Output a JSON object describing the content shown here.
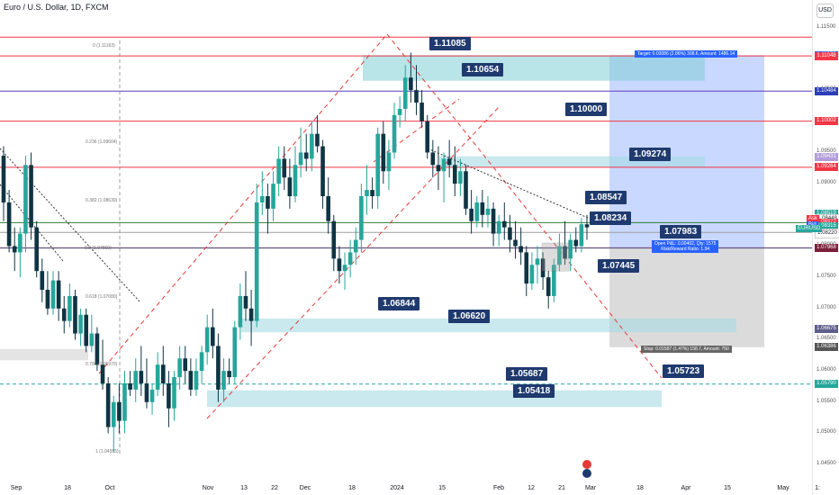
{
  "title": "Euro / U.S. Dollar, 1D, FXCM",
  "currency_button": "USD",
  "chart_data": {
    "type": "candlestick",
    "symbol": "EURUSD",
    "x_ticks": [
      "Sep",
      "18",
      "Oct",
      "Nov",
      "13",
      "22",
      "Dec",
      "18",
      "2024",
      "15",
      "Feb",
      "12",
      "21",
      "Mar",
      "18",
      "Apr",
      "15",
      "May",
      "1:"
    ],
    "y_ticks": [
      "1.11500",
      "1.11000",
      "1.10500",
      "1.10000",
      "1.09500",
      "1.09000",
      "1.08500",
      "1.08000",
      "1.07500",
      "1.07000",
      "1.06500",
      "1.06000",
      "1.05500",
      "1.05000",
      "1.04500"
    ],
    "ylim": [
      1.043,
      1.118
    ],
    "price_tags": [
      {
        "label": "1.11059",
        "color": "#2962ff"
      },
      {
        "label": "1.11048",
        "color": "#f23645"
      },
      {
        "label": "1.10484",
        "color": "#2c3eb8"
      },
      {
        "label": "1.10002",
        "color": "#f23645"
      },
      {
        "label": "1.09431",
        "color": "#b39ddb"
      },
      {
        "label": "1.09264",
        "color": "#f23645"
      },
      {
        "label": "1.08519",
        "color": "#26a69a"
      },
      {
        "label": "1.08448",
        "color": "#ffffff"
      },
      {
        "label": "1.08377",
        "color": "#f23645"
      },
      {
        "label": "1.08275",
        "color": "#2962ff"
      },
      {
        "label": "1.08315",
        "color": "#26a69a"
      },
      {
        "label": "1.08220",
        "color": "#ffffff"
      },
      {
        "label": "1.07973",
        "color": "#555555"
      },
      {
        "label": "1.07968",
        "color": "#7b1f3a"
      },
      {
        "label": "1.06675",
        "color": "#5e5e8c"
      },
      {
        "label": "1.06386",
        "color": "#555555"
      },
      {
        "label": "1.05790",
        "color": "#26a69a"
      }
    ],
    "mini_labels": [
      "Ask",
      "Bid",
      "EURUSD"
    ],
    "callouts": [
      "1.11085",
      "1.10654",
      "1.10000",
      "1.09274",
      "1.08547",
      "1.08234",
      "1.07983",
      "1.07445",
      "1.06844",
      "1.06620",
      "1.05687",
      "1.05418",
      "1.05723"
    ],
    "fib_labels": [
      "0 (1.11163)",
      "0.236 (1.09604)",
      "0.382 (1.08639)",
      "0.5 (1.07859)",
      "0.618 (1.07080)",
      "0.786 (1.05970)",
      "1 (1.04555)"
    ],
    "position": {
      "target": "Target: 0.03086 (2.86%) 308.6, Amount: 1486.14",
      "open": "Open P&L: 0.00402, Qty: 1575",
      "rr": "Risk/Reward Ratio: 1.94",
      "stop": "Stop: 0.01587 (1.47%) 158.7, Amount: 750"
    },
    "candles": [
      [
        1.0945,
        1.096,
        1.084,
        1.087
      ],
      [
        1.087,
        1.089,
        1.079,
        1.08
      ],
      [
        1.08,
        1.083,
        1.076,
        1.079
      ],
      [
        1.079,
        1.083,
        1.075,
        1.082
      ],
      [
        1.082,
        1.0945,
        1.079,
        1.093
      ],
      [
        1.093,
        1.095,
        1.081,
        1.083
      ],
      [
        1.083,
        1.084,
        1.075,
        1.076
      ],
      [
        1.076,
        1.078,
        1.071,
        1.073
      ],
      [
        1.073,
        1.076,
        1.069,
        1.07
      ],
      [
        1.07,
        1.076,
        1.069,
        1.0745
      ],
      [
        1.0745,
        1.076,
        1.068,
        1.07
      ],
      [
        1.07,
        1.072,
        1.066,
        1.068
      ],
      [
        1.068,
        1.074,
        1.067,
        1.072
      ],
      [
        1.072,
        1.073,
        1.065,
        1.066
      ],
      [
        1.066,
        1.07,
        1.064,
        1.069
      ],
      [
        1.069,
        1.07,
        1.063,
        1.064
      ],
      [
        1.064,
        1.069,
        1.063,
        1.066
      ],
      [
        1.066,
        1.067,
        1.06,
        1.061
      ],
      [
        1.061,
        1.065,
        1.057,
        1.058
      ],
      [
        1.058,
        1.059,
        1.05,
        1.051
      ],
      [
        1.051,
        1.056,
        1.047,
        1.055
      ],
      [
        1.055,
        1.058,
        1.05,
        1.052
      ],
      [
        1.052,
        1.06,
        1.05,
        1.058
      ],
      [
        1.058,
        1.06,
        1.056,
        1.057
      ],
      [
        1.057,
        1.062,
        1.055,
        1.06
      ],
      [
        1.06,
        1.064,
        1.056,
        1.058
      ],
      [
        1.058,
        1.062,
        1.054,
        1.055
      ],
      [
        1.055,
        1.058,
        1.053,
        1.057
      ],
      [
        1.057,
        1.063,
        1.056,
        1.061
      ],
      [
        1.061,
        1.064,
        1.056,
        1.058
      ],
      [
        1.058,
        1.06,
        1.051,
        1.054
      ],
      [
        1.054,
        1.06,
        1.052,
        1.059
      ],
      [
        1.059,
        1.064,
        1.057,
        1.062
      ],
      [
        1.062,
        1.064,
        1.058,
        1.06
      ],
      [
        1.06,
        1.062,
        1.056,
        1.057
      ],
      [
        1.057,
        1.062,
        1.056,
        1.06
      ],
      [
        1.06,
        1.064,
        1.058,
        1.063
      ],
      [
        1.063,
        1.069,
        1.061,
        1.067
      ],
      [
        1.067,
        1.07,
        1.062,
        1.064
      ],
      [
        1.064,
        1.066,
        1.055,
        1.057
      ],
      [
        1.057,
        1.062,
        1.055,
        1.06
      ],
      [
        1.06,
        1.062,
        1.058,
        1.059
      ],
      [
        1.059,
        1.068,
        1.058,
        1.067
      ],
      [
        1.067,
        1.074,
        1.065,
        1.072
      ],
      [
        1.072,
        1.076,
        1.068,
        1.07
      ],
      [
        1.07,
        1.073,
        1.064,
        1.068
      ],
      [
        1.068,
        1.09,
        1.067,
        1.087
      ],
      [
        1.087,
        1.092,
        1.085,
        1.088
      ],
      [
        1.088,
        1.09,
        1.082,
        1.086
      ],
      [
        1.086,
        1.092,
        1.084,
        1.09
      ],
      [
        1.09,
        1.096,
        1.088,
        1.094
      ],
      [
        1.094,
        1.096,
        1.089,
        1.091
      ],
      [
        1.091,
        1.094,
        1.086,
        1.088
      ],
      [
        1.088,
        1.096,
        1.087,
        1.093
      ],
      [
        1.093,
        1.099,
        1.091,
        1.095
      ],
      [
        1.095,
        1.098,
        1.092,
        1.094
      ],
      [
        1.094,
        1.1,
        1.092,
        1.098
      ],
      [
        1.098,
        1.101,
        1.095,
        1.096
      ],
      [
        1.096,
        1.097,
        1.086,
        1.088
      ],
      [
        1.088,
        1.091,
        1.082,
        1.084
      ],
      [
        1.084,
        1.085,
        1.076,
        1.078
      ],
      [
        1.078,
        1.08,
        1.074,
        1.076
      ],
      [
        1.076,
        1.079,
        1.073,
        1.077
      ],
      [
        1.077,
        1.081,
        1.075,
        1.079
      ],
      [
        1.079,
        1.083,
        1.077,
        1.081
      ],
      [
        1.081,
        1.09,
        1.079,
        1.088
      ],
      [
        1.088,
        1.093,
        1.085,
        1.089
      ],
      [
        1.089,
        1.091,
        1.086,
        1.088
      ],
      [
        1.088,
        1.099,
        1.086,
        1.098
      ],
      [
        1.098,
        1.1,
        1.09,
        1.092
      ],
      [
        1.092,
        1.097,
        1.089,
        1.095
      ],
      [
        1.095,
        1.103,
        1.094,
        1.101
      ],
      [
        1.101,
        1.104,
        1.099,
        1.102
      ],
      [
        1.102,
        1.109,
        1.1,
        1.107
      ],
      [
        1.107,
        1.111,
        1.103,
        1.105
      ],
      [
        1.105,
        1.109,
        1.101,
        1.103
      ],
      [
        1.103,
        1.105,
        1.099,
        1.1
      ],
      [
        1.1,
        1.101,
        1.094,
        1.095
      ],
      [
        1.095,
        1.097,
        1.091,
        1.093
      ],
      [
        1.093,
        1.096,
        1.089,
        1.092
      ],
      [
        1.092,
        1.095,
        1.087,
        1.094
      ],
      [
        1.094,
        1.097,
        1.091,
        1.093
      ],
      [
        1.093,
        1.096,
        1.088,
        1.09
      ],
      [
        1.09,
        1.094,
        1.088,
        1.092
      ],
      [
        1.092,
        1.093,
        1.085,
        1.086
      ],
      [
        1.086,
        1.089,
        1.082,
        1.084
      ],
      [
        1.084,
        1.088,
        1.083,
        1.087
      ],
      [
        1.087,
        1.089,
        1.083,
        1.085
      ],
      [
        1.085,
        1.088,
        1.083,
        1.086
      ],
      [
        1.086,
        1.087,
        1.08,
        1.082
      ],
      [
        1.082,
        1.085,
        1.08,
        1.084
      ],
      [
        1.084,
        1.087,
        1.081,
        1.083
      ],
      [
        1.083,
        1.085,
        1.079,
        1.081
      ],
      [
        1.081,
        1.084,
        1.078,
        1.08
      ],
      [
        1.08,
        1.083,
        1.077,
        1.079
      ],
      [
        1.079,
        1.08,
        1.072,
        1.074
      ],
      [
        1.074,
        1.079,
        1.073,
        1.077
      ],
      [
        1.077,
        1.08,
        1.074,
        1.078
      ],
      [
        1.078,
        1.079,
        1.073,
        1.075
      ],
      [
        1.075,
        1.076,
        1.07,
        1.072
      ],
      [
        1.072,
        1.078,
        1.071,
        1.077
      ],
      [
        1.077,
        1.082,
        1.076,
        1.08
      ],
      [
        1.08,
        1.084,
        1.077,
        1.078
      ],
      [
        1.078,
        1.082,
        1.076,
        1.081
      ],
      [
        1.081,
        1.083,
        1.079,
        1.08
      ],
      [
        1.08,
        1.0845,
        1.079,
        1.0835
      ],
      [
        1.0835,
        1.085,
        1.081,
        1.083
      ]
    ]
  }
}
